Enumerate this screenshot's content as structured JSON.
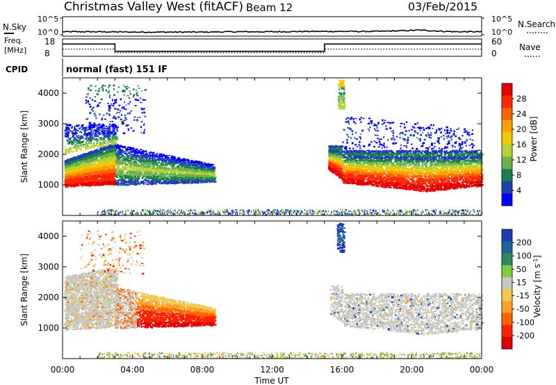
{
  "header": {
    "station": "Christmas Valley West (fitACF)",
    "beam": "Beam 12",
    "date": "03/Feb/2015"
  },
  "noise_panel": {
    "left_label": "N.Sky",
    "left_ticks": [
      "10^5",
      "10^0"
    ],
    "right_label": "N.Search",
    "right_ticks": [
      "10^5",
      "10^0"
    ]
  },
  "freq_panel": {
    "left_label_1": "Freq.",
    "left_label_2": "[MHz]",
    "left_ticks": [
      "18",
      "8"
    ],
    "right_label": "Nave",
    "right_ticks": [
      "60",
      "0"
    ]
  },
  "cpid": {
    "label": "CPID",
    "value": "normal (fast) 151 IF"
  },
  "x_axis": {
    "title": "Time UT",
    "ticks": [
      "00:00",
      "04:00",
      "08:00",
      "12:00",
      "16:00",
      "20:00",
      "00:00"
    ]
  },
  "colors": {
    "power_scale": [
      "#0000ff",
      "#1e40b4",
      "#1e7f4a",
      "#6ab04c",
      "#b4d232",
      "#f0c800",
      "#ffa000",
      "#ff6400",
      "#ff2800",
      "#e60000"
    ],
    "velocity_scale": [
      "#1e3cb4",
      "#1e64a0",
      "#2e8b57",
      "#7ccd3c",
      "#c8c8c0",
      "#f0c850",
      "#ffa020",
      "#ff6400",
      "#ff2000",
      "#e00000"
    ]
  },
  "chart_data": [
    {
      "type": "line",
      "title": "Christmas Valley West (fitACF)",
      "ylabel": "N.Sky",
      "ylim": [
        0,
        5
      ],
      "y_scale": "log10",
      "series": [
        {
          "x": [
            0,
            2,
            4,
            6,
            8,
            10,
            12,
            14,
            16,
            18,
            19.5,
            20.5,
            21.5,
            22.5,
            24
          ],
          "values": [
            0.9,
            0.9,
            0.8,
            0.8,
            0.8,
            0.9,
            0.9,
            1.0,
            1.0,
            1.0,
            1.2,
            1.4,
            1.1,
            0.9,
            0.9
          ]
        }
      ]
    },
    {
      "type": "line",
      "ylabel": "Freq. [MHz]",
      "ylim": [
        8,
        18
      ],
      "series": [
        {
          "x": [
            0,
            3.0,
            3.0,
            15.0,
            15.0,
            24
          ],
          "values": [
            15.5,
            15.5,
            10.5,
            10.5,
            15.5,
            15.5
          ]
        },
        {
          "x": [
            0,
            3.0,
            3.0,
            15.0,
            15.0,
            24
          ],
          "values": [
            12.0,
            12.0,
            9.5,
            9.5,
            12.0,
            12.0
          ]
        }
      ]
    },
    {
      "type": "heatmap",
      "xlabel": "Time UT",
      "ylabel": "Slant Range [km]",
      "ylim": [
        0,
        4500
      ],
      "yticks": [
        1000,
        2000,
        3000,
        4000
      ],
      "colorbar_label": "Power [dB]",
      "colorbar_ticks": [
        "28",
        "24",
        "20",
        "16",
        "12",
        "8",
        "4"
      ],
      "vrange": [
        0,
        32
      ]
    },
    {
      "type": "heatmap",
      "xlabel": "Time UT",
      "ylabel": "Slant Range [km]",
      "ylim": [
        0,
        4500
      ],
      "yticks": [
        1000,
        2000,
        3000,
        4000
      ],
      "colorbar_label": "Velocity [m s-1]",
      "colorbar_ticks": [
        "200",
        "100",
        "50",
        "15",
        "-15",
        "-50",
        "-100",
        "-200"
      ],
      "vrange": [
        -250,
        250
      ]
    }
  ]
}
